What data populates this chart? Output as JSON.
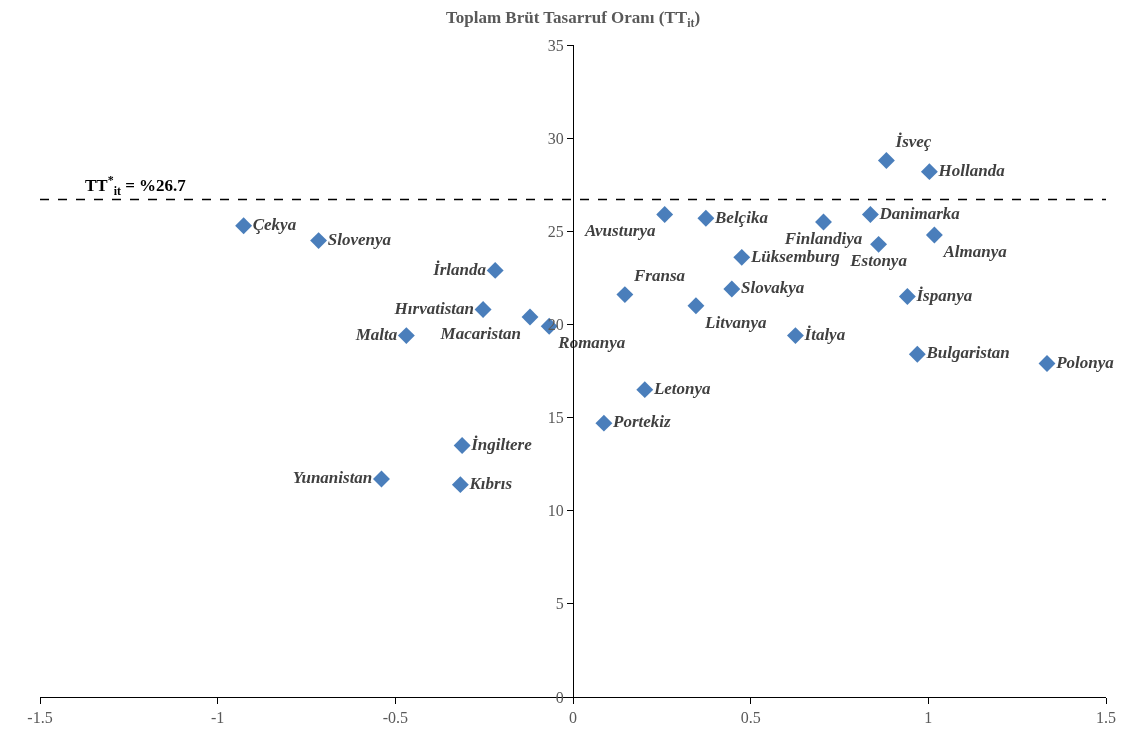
{
  "chart_data": {
    "type": "scatter",
    "title": "Toplam Brüt Tasarruf Oranı (TT$_{it}$)",
    "x": [
      -0.927,
      -0.716,
      -0.219,
      -0.253,
      -0.121,
      -0.067,
      -0.469,
      0.258,
      0.374,
      0.146,
      0.346,
      0.447,
      0.475,
      0.626,
      0.202,
      0.087,
      -0.312,
      -0.539,
      -0.317,
      0.882,
      1.003,
      0.837,
      0.705,
      1.017,
      0.86,
      0.941,
      0.969,
      1.334
    ],
    "values": [
      25.3,
      24.5,
      22.9,
      20.8,
      20.4,
      19.9,
      19.4,
      25.9,
      25.7,
      21.6,
      21.0,
      21.9,
      23.6,
      19.4,
      16.5,
      14.7,
      13.5,
      11.7,
      11.4,
      28.8,
      28.2,
      25.9,
      25.5,
      24.8,
      24.3,
      21.5,
      18.4,
      17.9
    ],
    "value_labels": [
      "Çekya",
      "Slovenya",
      "İrlanda",
      "Hırvatistan",
      "Macaristan",
      "Romanya",
      "Malta",
      "Avusturya",
      "Belçika",
      "Fransa",
      "Litvanya",
      "Slovakya",
      "Lüksemburg",
      "İtalya",
      "Letonya",
      "Portekiz",
      "İngiltere",
      "Yunanistan",
      "Kıbrıs",
      "İsveç",
      "Hollanda",
      "Danimarka",
      "Finlandiya",
      "Almanya",
      "Estonya",
      "İspanya",
      "Bulgaristan",
      "Polonya"
    ],
    "color": "#4a7ebb",
    "marker": "diamond",
    "xlim": [
      -1.5,
      1.5
    ],
    "xticks": [
      -1.5,
      -1,
      -0.5,
      0,
      0.5,
      1,
      1.5
    ],
    "ylim": [
      0,
      35
    ],
    "yticks": [
      0,
      5,
      10,
      15,
      20,
      25,
      30,
      35
    ],
    "ref_lines": [
      {
        "axis": "y",
        "value": 26.7,
        "label": "TT$^{*}$$_{it}$ = %26.7",
        "color": "#000000",
        "line_style": "dashed"
      }
    ],
    "legend": false
  }
}
